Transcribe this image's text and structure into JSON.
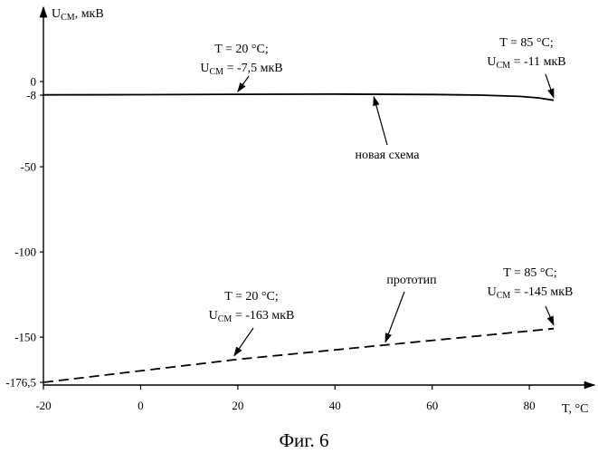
{
  "chart_data": {
    "type": "line",
    "xlim": [
      -20,
      85
    ],
    "ylim": [
      -176.5,
      0
    ],
    "x_ticks": [
      "-20",
      "0",
      "20",
      "40",
      "60",
      "80"
    ],
    "y_ticks": [
      "0",
      "-8",
      "-50",
      "-100",
      "-150",
      "-176,5"
    ],
    "y_tick_values": [
      0,
      -8,
      -50,
      -100,
      -150,
      -176.5
    ],
    "x_tick_values": [
      -20,
      0,
      20,
      40,
      60,
      80
    ],
    "ylabel": {
      "main": "U",
      "sub": "СМ",
      "rest": ", мкВ"
    },
    "xlabel": "T, °C",
    "caption": "Фиг. 6",
    "grid": false,
    "series": [
      {
        "name": "новая схема",
        "style": "solid",
        "points": [
          [
            -20,
            -7.8
          ],
          [
            0,
            -7.7
          ],
          [
            20,
            -7.5
          ],
          [
            40,
            -7.4
          ],
          [
            60,
            -7.6
          ],
          [
            70,
            -8.0
          ],
          [
            78,
            -8.7
          ],
          [
            82,
            -9.6
          ],
          [
            85,
            -11
          ]
        ]
      },
      {
        "name": "прототип",
        "style": "dashed",
        "points": [
          [
            -20,
            -176.5
          ],
          [
            20,
            -163
          ],
          [
            85,
            -145
          ]
        ]
      }
    ],
    "annotations": [
      {
        "line1": "T = 20 °C;",
        "pre": "U",
        "sub": "СМ",
        "post": " = -7,5 мкВ",
        "point": [
          20,
          -7.5
        ]
      },
      {
        "line1": "T = 85 °C;",
        "pre": "U",
        "sub": "СМ",
        "post": " = -11 мкВ",
        "point": [
          85,
          -11
        ]
      },
      {
        "line1": "T = 20 °C;",
        "pre": "U",
        "sub": "СМ",
        "post": " = -163 мкВ",
        "point": [
          20,
          -163
        ]
      },
      {
        "line1": "T = 85 °C;",
        "pre": "U",
        "sub": "СМ",
        "post": " = -145 мкВ",
        "point": [
          85,
          -145
        ]
      }
    ],
    "series_labels": [
      {
        "text": "новая схема",
        "point": [
          48,
          -7.4
        ]
      },
      {
        "text": "прототип",
        "point": [
          50,
          -155
        ]
      }
    ]
  }
}
